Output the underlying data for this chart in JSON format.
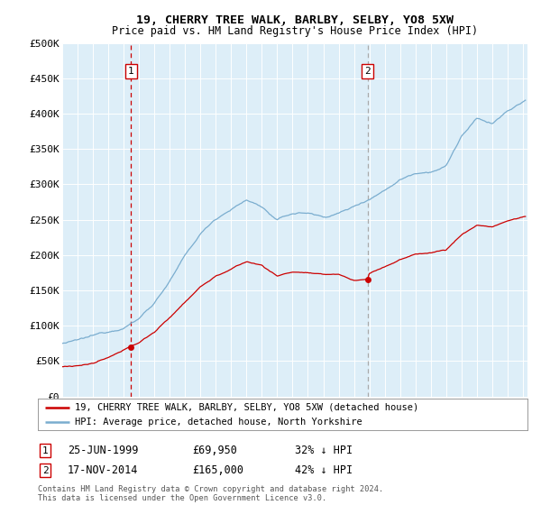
{
  "title": "19, CHERRY TREE WALK, BARLBY, SELBY, YO8 5XW",
  "subtitle": "Price paid vs. HM Land Registry's House Price Index (HPI)",
  "legend_line1": "19, CHERRY TREE WALK, BARLBY, SELBY, YO8 5XW (detached house)",
  "legend_line2": "HPI: Average price, detached house, North Yorkshire",
  "footnote": "Contains HM Land Registry data © Crown copyright and database right 2024.\nThis data is licensed under the Open Government Licence v3.0.",
  "marker1_date": "25-JUN-1999",
  "marker1_price": "£69,950",
  "marker1_hpi": "32% ↓ HPI",
  "marker1_x": 1999.48,
  "marker1_y": 69950,
  "marker2_date": "17-NOV-2014",
  "marker2_price": "£165,000",
  "marker2_hpi": "42% ↓ HPI",
  "marker2_x": 2014.88,
  "marker2_y": 165000,
  "red_color": "#cc0000",
  "blue_color": "#7aadcf",
  "bg_color": "#ddeef8",
  "grid_color": "#ffffff",
  "marker2_vline_color": "#aaaaaa",
  "ylim": [
    0,
    500000
  ],
  "xlim_start": 1995.0,
  "xlim_end": 2025.3
}
